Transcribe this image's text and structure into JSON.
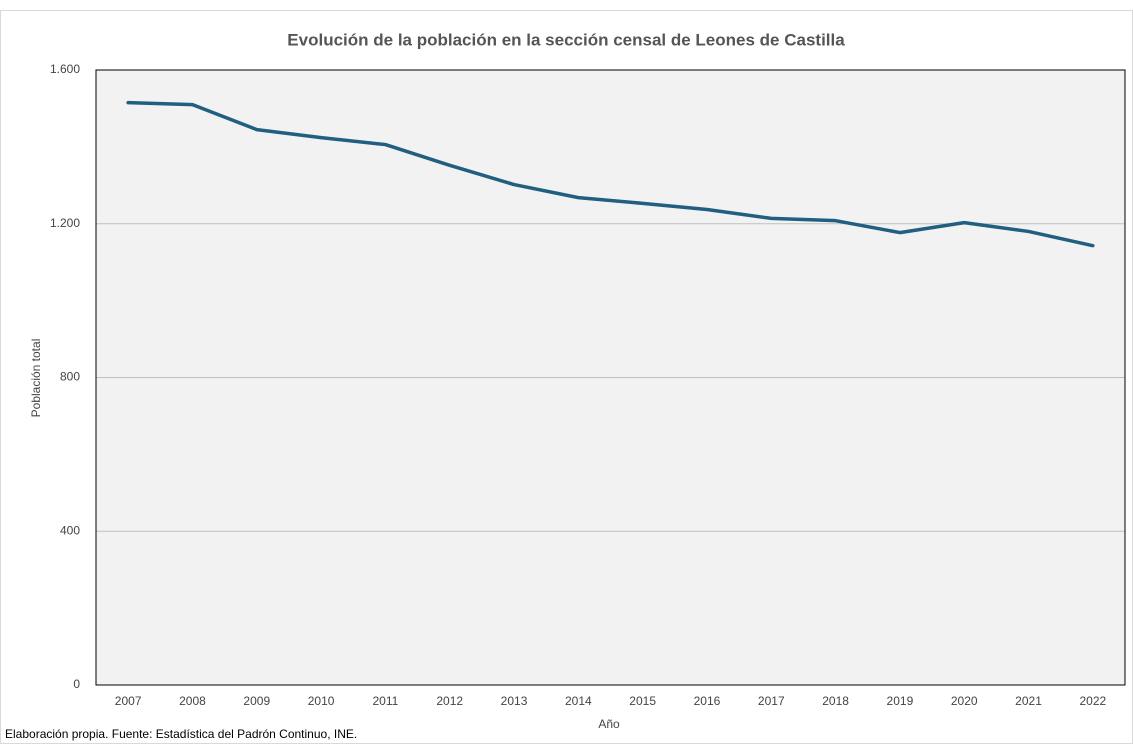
{
  "chart_data": {
    "type": "line",
    "title": "Evolución de la población en la sección censal de Leones de Castilla",
    "x_label": "Año",
    "y_label": "Población total",
    "note": "Elaboración propia. Fuente: Estadística del Padrón Continuo, INE.",
    "categories": [
      "2007",
      "2008",
      "2009",
      "2010",
      "2011",
      "2012",
      "2013",
      "2014",
      "2015",
      "2016",
      "2017",
      "2018",
      "2019",
      "2020",
      "2021",
      "2022"
    ],
    "series": [
      {
        "name": "Población total",
        "color": "#215f80",
        "values": [
          1515,
          1510,
          1445,
          1424,
          1406,
          1352,
          1302,
          1268,
          1253,
          1237,
          1214,
          1208,
          1177,
          1203,
          1180,
          1143
        ]
      }
    ],
    "ylim": [
      0,
      1600
    ],
    "yticks": [
      0,
      400,
      800,
      {
        "value": 1200,
        "label": "1.200"
      },
      {
        "value": 1600,
        "label": "1.600"
      }
    ],
    "grid": true
  }
}
